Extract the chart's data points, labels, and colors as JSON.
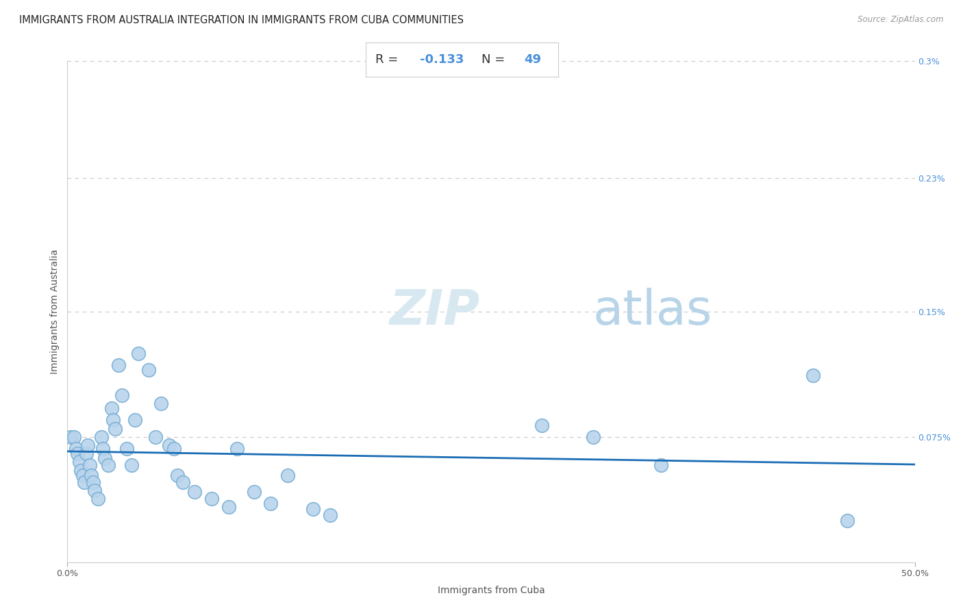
{
  "title": "IMMIGRANTS FROM AUSTRALIA INTEGRATION IN IMMIGRANTS FROM CUBA COMMUNITIES",
  "source": "Source: ZipAtlas.com",
  "xlabel": "Immigrants from Cuba",
  "ylabel": "Immigrants from Australia",
  "R_text": "R = ",
  "R_val": "-0.133",
  "N_text": "  N = ",
  "N_val": "49",
  "xlim": [
    0.0,
    0.5
  ],
  "ylim": [
    0.0,
    0.3
  ],
  "xtick_vals": [
    0.0,
    0.5
  ],
  "xtick_labels": [
    "0.0%",
    "50.0%"
  ],
  "ytick_vals": [
    0.075,
    0.15,
    0.23,
    0.3
  ],
  "ytick_labels": [
    "0.075%",
    "0.15%",
    "0.23%",
    "0.3%"
  ],
  "scatter_color": "#b8d4ec",
  "scatter_edge_color": "#7aafd4",
  "trend_color": "#1a6db5",
  "background_color": "#ffffff",
  "grid_color": "#c8c8c8",
  "x_data": [
    0.002,
    0.004,
    0.005,
    0.006,
    0.007,
    0.008,
    0.009,
    0.01,
    0.011,
    0.012,
    0.013,
    0.014,
    0.015,
    0.016,
    0.018,
    0.02,
    0.021,
    0.022,
    0.024,
    0.026,
    0.027,
    0.028,
    0.03,
    0.032,
    0.035,
    0.038,
    0.04,
    0.042,
    0.048,
    0.052,
    0.055,
    0.06,
    0.063,
    0.065,
    0.068,
    0.075,
    0.085,
    0.095,
    0.1,
    0.11,
    0.12,
    0.13,
    0.145,
    0.155,
    0.28,
    0.31,
    0.35,
    0.44,
    0.46
  ],
  "y_data": [
    0.075,
    0.075,
    0.068,
    0.065,
    0.06,
    0.055,
    0.052,
    0.048,
    0.065,
    0.07,
    0.058,
    0.052,
    0.048,
    0.043,
    0.038,
    0.075,
    0.068,
    0.062,
    0.058,
    0.092,
    0.085,
    0.08,
    0.118,
    0.1,
    0.068,
    0.058,
    0.085,
    0.125,
    0.115,
    0.075,
    0.095,
    0.07,
    0.068,
    0.052,
    0.048,
    0.042,
    0.038,
    0.033,
    0.068,
    0.042,
    0.035,
    0.052,
    0.032,
    0.028,
    0.082,
    0.075,
    0.058,
    0.112,
    0.025
  ],
  "title_fontsize": 10.5,
  "axis_label_fontsize": 10,
  "tick_fontsize": 9,
  "stats_fontsize": 13,
  "watermark_fontsize": 52
}
